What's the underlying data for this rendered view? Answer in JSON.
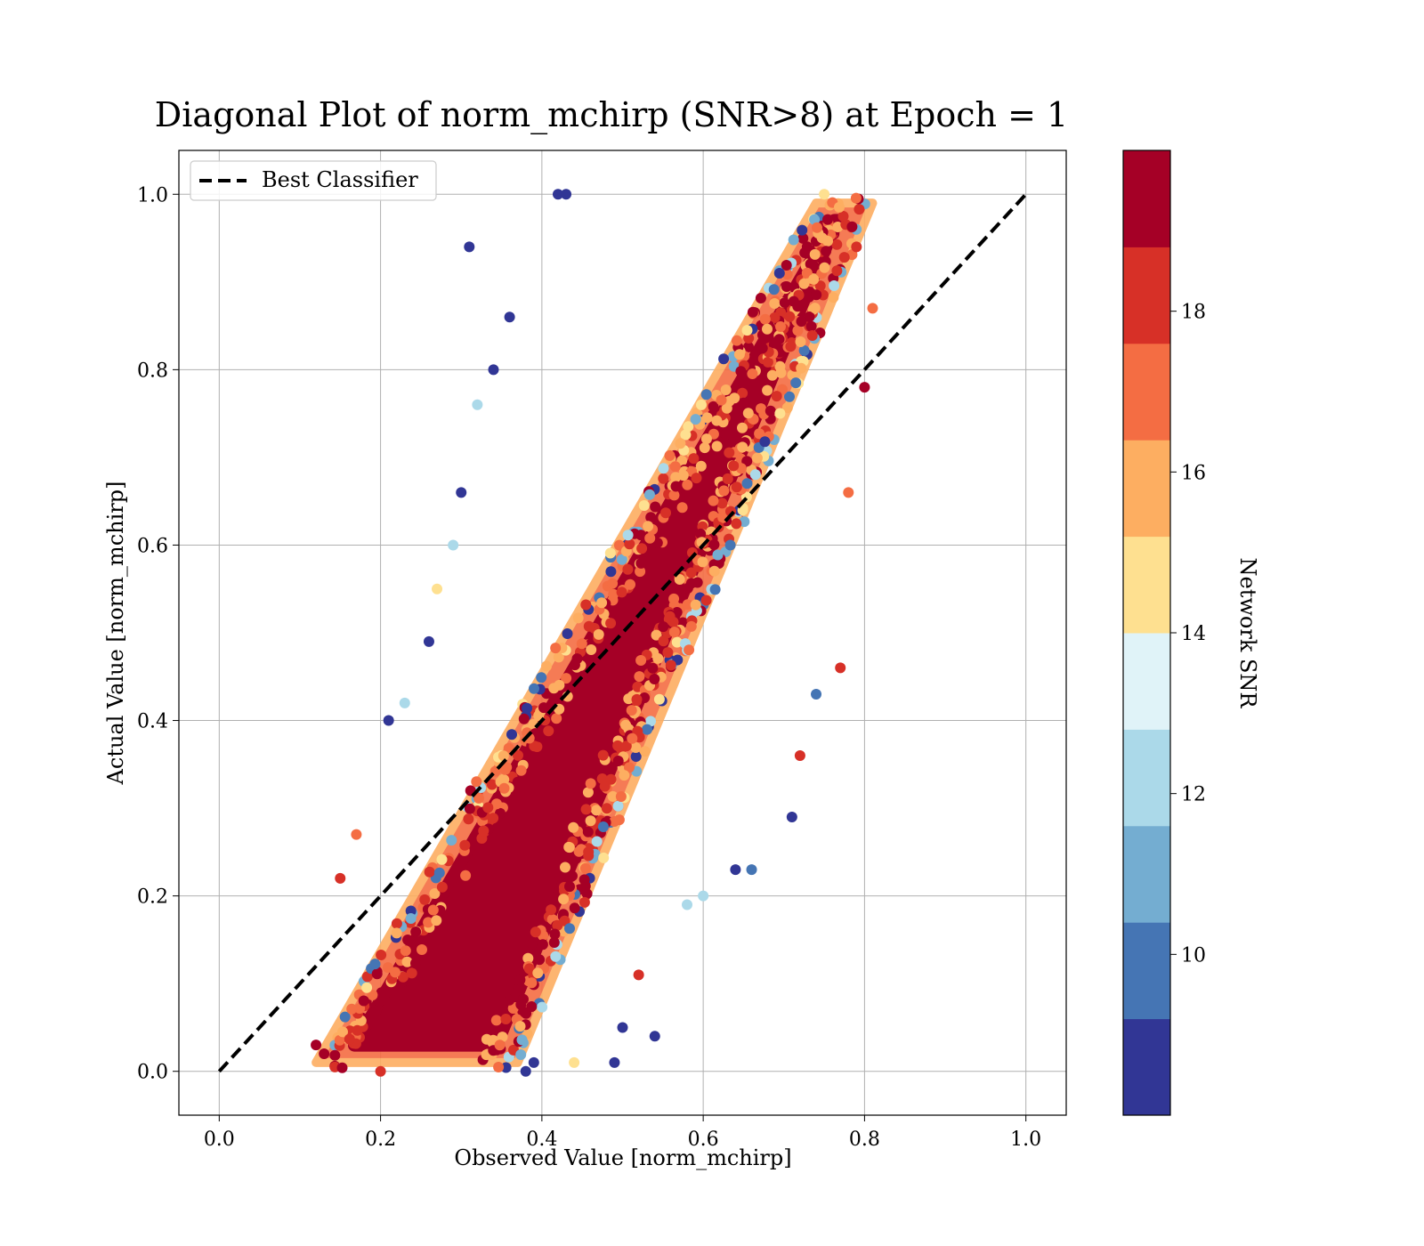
{
  "chart_data": {
    "type": "scatter",
    "title": "Diagonal Plot of norm_mchirp (SNR>8) at Epoch = 1",
    "xlabel": "Observed Value [norm_mchirp]",
    "ylabel": "Actual Value [norm_mchirp]",
    "xlim": [
      -0.05,
      1.05
    ],
    "ylim": [
      -0.05,
      1.05
    ],
    "xticks": [
      "0.0",
      "0.2",
      "0.4",
      "0.6",
      "0.8",
      "1.0"
    ],
    "yticks": [
      "0.0",
      "0.2",
      "0.4",
      "0.6",
      "0.8",
      "1.0"
    ],
    "grid": true,
    "legend": {
      "placement": "upper-left",
      "entries": [
        {
          "label": "Best Classifier",
          "style": "dashed",
          "color": "#000000"
        }
      ]
    },
    "reference_line": {
      "name": "Best Classifier",
      "x": [
        0.0,
        1.0
      ],
      "y": [
        0.0,
        1.0
      ]
    },
    "colorbar": {
      "label": "Network SNR",
      "range": [
        8,
        20
      ],
      "ticks": [
        "10",
        "12",
        "14",
        "16",
        "18"
      ],
      "colors": [
        "#313695",
        "#4575b4",
        "#74add1",
        "#abd9e9",
        "#e0f3f8",
        "#fee090",
        "#fdae61",
        "#f46d43",
        "#d73027",
        "#a50026"
      ]
    },
    "series": [
      {
        "color_by": "Network SNR",
        "points": [
          {
            "x": 0.12,
            "y": 0.03,
            "snr": 20
          },
          {
            "x": 0.13,
            "y": 0.02,
            "snr": 20
          },
          {
            "x": 0.15,
            "y": 0.22,
            "snr": 18
          },
          {
            "x": 0.17,
            "y": 0.27,
            "snr": 17
          },
          {
            "x": 0.2,
            "y": 0.0,
            "snr": 18
          },
          {
            "x": 0.21,
            "y": 0.4,
            "snr": 9
          },
          {
            "x": 0.23,
            "y": 0.42,
            "snr": 12
          },
          {
            "x": 0.26,
            "y": 0.49,
            "snr": 9
          },
          {
            "x": 0.27,
            "y": 0.55,
            "snr": 14
          },
          {
            "x": 0.29,
            "y": 0.6,
            "snr": 12
          },
          {
            "x": 0.3,
            "y": 0.66,
            "snr": 9
          },
          {
            "x": 0.31,
            "y": 0.94,
            "snr": 9
          },
          {
            "x": 0.32,
            "y": 0.76,
            "snr": 12
          },
          {
            "x": 0.34,
            "y": 0.8,
            "snr": 9
          },
          {
            "x": 0.36,
            "y": 0.86,
            "snr": 9
          },
          {
            "x": 0.38,
            "y": 0.0,
            "snr": 9
          },
          {
            "x": 0.39,
            "y": 0.01,
            "snr": 9
          },
          {
            "x": 0.42,
            "y": 1.0,
            "snr": 9
          },
          {
            "x": 0.43,
            "y": 1.0,
            "snr": 9
          },
          {
            "x": 0.44,
            "y": 0.01,
            "snr": 14
          },
          {
            "x": 0.49,
            "y": 0.01,
            "snr": 9
          },
          {
            "x": 0.5,
            "y": 0.05,
            "snr": 9
          },
          {
            "x": 0.52,
            "y": 0.11,
            "snr": 18
          },
          {
            "x": 0.54,
            "y": 0.04,
            "snr": 9
          },
          {
            "x": 0.58,
            "y": 0.19,
            "snr": 12
          },
          {
            "x": 0.6,
            "y": 0.2,
            "snr": 12
          },
          {
            "x": 0.64,
            "y": 0.23,
            "snr": 9
          },
          {
            "x": 0.66,
            "y": 0.23,
            "snr": 10
          },
          {
            "x": 0.71,
            "y": 0.29,
            "snr": 9
          },
          {
            "x": 0.72,
            "y": 0.36,
            "snr": 18
          },
          {
            "x": 0.74,
            "y": 0.43,
            "snr": 10
          },
          {
            "x": 0.77,
            "y": 0.46,
            "snr": 18
          },
          {
            "x": 0.78,
            "y": 0.66,
            "snr": 17
          },
          {
            "x": 0.8,
            "y": 0.78,
            "snr": 20
          },
          {
            "x": 0.81,
            "y": 0.87,
            "snr": 17
          },
          {
            "x": 0.79,
            "y": 0.94,
            "snr": 18
          },
          {
            "x": 0.75,
            "y": 1.0,
            "snr": 14
          }
        ]
      }
    ]
  }
}
